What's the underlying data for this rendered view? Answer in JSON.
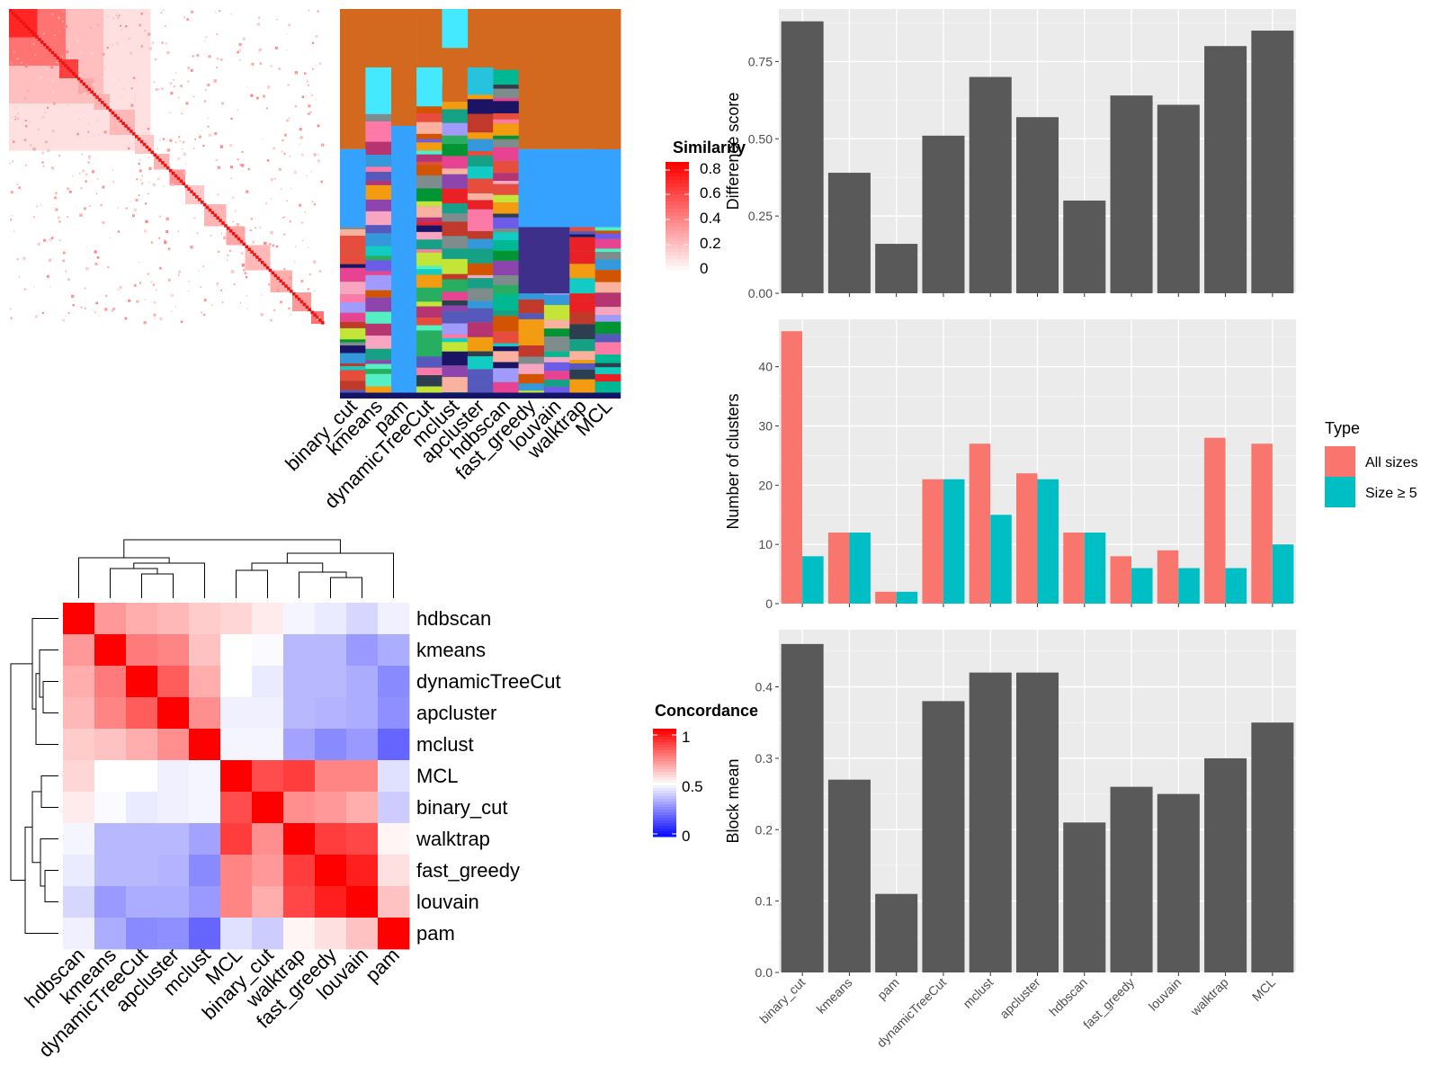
{
  "methods": [
    "binary_cut",
    "kmeans",
    "pam",
    "dynamicTreeCut",
    "mclust",
    "apcluster",
    "hdbscan",
    "fast_greedy",
    "louvain",
    "walktrap",
    "MCL"
  ],
  "similarity_legend": {
    "title": "Similarity",
    "ticks": [
      "0.8",
      "0.6",
      "0.4",
      "0.2",
      "0"
    ]
  },
  "concordance_legend": {
    "title": "Concordance",
    "ticks": [
      "1",
      "0.5",
      "0"
    ]
  },
  "concordance_order": [
    "hdbscan",
    "kmeans",
    "dynamicTreeCut",
    "apcluster",
    "mclust",
    "MCL",
    "binary_cut",
    "walktrap",
    "fast_greedy",
    "louvain",
    "pam"
  ],
  "concordance_matrix": [
    [
      1.0,
      0.7,
      0.66,
      0.64,
      0.6,
      0.58,
      0.54,
      0.48,
      0.46,
      0.42,
      0.47
    ],
    [
      0.7,
      1.0,
      0.76,
      0.74,
      0.62,
      0.5,
      0.49,
      0.36,
      0.36,
      0.3,
      0.34
    ],
    [
      0.66,
      0.76,
      1.0,
      0.82,
      0.66,
      0.5,
      0.46,
      0.36,
      0.36,
      0.34,
      0.27
    ],
    [
      0.64,
      0.74,
      0.82,
      1.0,
      0.72,
      0.47,
      0.47,
      0.36,
      0.35,
      0.34,
      0.28
    ],
    [
      0.6,
      0.62,
      0.66,
      0.72,
      1.0,
      0.48,
      0.48,
      0.32,
      0.27,
      0.3,
      0.2
    ],
    [
      0.58,
      0.5,
      0.5,
      0.47,
      0.48,
      1.0,
      0.85,
      0.88,
      0.74,
      0.74,
      0.44
    ],
    [
      0.54,
      0.49,
      0.46,
      0.47,
      0.48,
      0.85,
      1.0,
      0.72,
      0.7,
      0.66,
      0.4
    ],
    [
      0.48,
      0.36,
      0.36,
      0.36,
      0.32,
      0.88,
      0.72,
      1.0,
      0.88,
      0.86,
      0.52
    ],
    [
      0.46,
      0.36,
      0.36,
      0.35,
      0.27,
      0.74,
      0.7,
      0.88,
      1.0,
      0.94,
      0.56
    ],
    [
      0.42,
      0.3,
      0.34,
      0.34,
      0.3,
      0.74,
      0.66,
      0.86,
      0.94,
      1.0,
      0.62
    ],
    [
      0.47,
      0.34,
      0.27,
      0.28,
      0.2,
      0.44,
      0.4,
      0.52,
      0.56,
      0.62,
      1.0
    ]
  ],
  "colors": {
    "bar_gray": "#595959",
    "panel_bg": "#ebebeb",
    "grid_white": "#ffffff",
    "all_sizes": "#f8766d",
    "size_ge5": "#00bfc4",
    "heat_red": "#ff0000",
    "heat_blue": "#0000ff"
  },
  "chart_data": [
    {
      "type": "bar",
      "categories": [
        "binary_cut",
        "kmeans",
        "pam",
        "dynamicTreeCut",
        "mclust",
        "apcluster",
        "hdbscan",
        "fast_greedy",
        "louvain",
        "walktrap",
        "MCL"
      ],
      "values": [
        0.88,
        0.39,
        0.16,
        0.51,
        0.7,
        0.57,
        0.3,
        0.64,
        0.61,
        0.8,
        0.85
      ],
      "ylabel": "Difference score",
      "ylim": [
        0,
        0.92
      ],
      "yticks": [
        "0.00",
        "0.25",
        "0.50",
        "0.75"
      ]
    },
    {
      "type": "bar",
      "categories": [
        "binary_cut",
        "kmeans",
        "pam",
        "dynamicTreeCut",
        "mclust",
        "apcluster",
        "hdbscan",
        "fast_greedy",
        "louvain",
        "walktrap",
        "MCL"
      ],
      "series": [
        {
          "name": "All sizes",
          "values": [
            46,
            12,
            2,
            21,
            27,
            22,
            12,
            8,
            9,
            28,
            27
          ]
        },
        {
          "name": "Size ≥ 5",
          "values": [
            8,
            12,
            2,
            21,
            15,
            21,
            12,
            6,
            6,
            6,
            10
          ]
        }
      ],
      "ylabel": "Number of clusters",
      "ylim": [
        0,
        48
      ],
      "yticks": [
        "0",
        "10",
        "20",
        "30",
        "40"
      ],
      "legend_title": "Type",
      "legend_position": "right"
    },
    {
      "type": "bar",
      "categories": [
        "binary_cut",
        "kmeans",
        "pam",
        "dynamicTreeCut",
        "mclust",
        "apcluster",
        "hdbscan",
        "fast_greedy",
        "louvain",
        "walktrap",
        "MCL"
      ],
      "values": [
        0.46,
        0.27,
        0.11,
        0.38,
        0.42,
        0.42,
        0.21,
        0.26,
        0.25,
        0.3,
        0.35
      ],
      "ylabel": "Block mean",
      "ylim": [
        0,
        0.48
      ],
      "yticks": [
        "0.0",
        "0.1",
        "0.2",
        "0.3",
        "0.4"
      ]
    }
  ]
}
